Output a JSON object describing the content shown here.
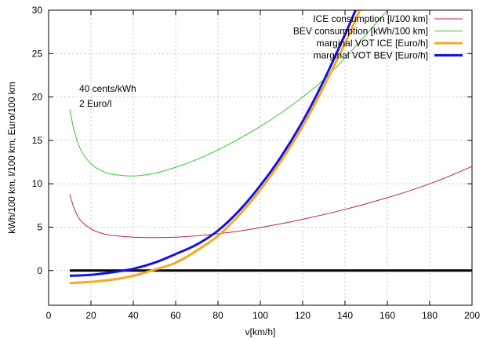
{
  "chart_data": {
    "type": "line",
    "xlabel": "v[km/h]",
    "ylabel": "kWh/100 km, l/100 km, Euro/100 km",
    "xlim": [
      0,
      200
    ],
    "ylim": [
      -4,
      30
    ],
    "xticks": [
      0,
      20,
      40,
      60,
      80,
      100,
      120,
      140,
      160,
      180,
      200
    ],
    "yticks": [
      0,
      5,
      10,
      15,
      20,
      25,
      30
    ],
    "grid": true,
    "legend_position": "top-right",
    "annotations": [
      "40 cents/kWh",
      "2 Euro/l"
    ],
    "zero_line": {
      "y": 0,
      "color": "#000000"
    },
    "series": [
      {
        "name": "ICE consumption [l/100 km]",
        "color": "#c0223b",
        "x": [
          10,
          12,
          15,
          20,
          25,
          30,
          40,
          50,
          60,
          70,
          80,
          90,
          100,
          110,
          120,
          130,
          140,
          150,
          160,
          170,
          180,
          190,
          200
        ],
        "y": [
          8.8,
          7.2,
          5.8,
          4.8,
          4.3,
          4.05,
          3.85,
          3.8,
          3.85,
          4.0,
          4.25,
          4.55,
          4.95,
          5.4,
          5.9,
          6.45,
          7.05,
          7.7,
          8.4,
          9.15,
          10.0,
          10.95,
          12.0
        ]
      },
      {
        "name": "BEV consumption [kWh/100 km]",
        "color": "#2bcc2b",
        "x": [
          10,
          12,
          15,
          20,
          25,
          30,
          40,
          50,
          60,
          70,
          80,
          90,
          100,
          110,
          120,
          130,
          140,
          150,
          160
        ],
        "y": [
          18.6,
          16.2,
          14.0,
          12.3,
          11.5,
          11.1,
          10.9,
          11.2,
          11.9,
          12.8,
          13.9,
          15.2,
          16.6,
          18.2,
          20.0,
          22.0,
          24.5,
          27.2,
          30.0
        ]
      },
      {
        "name": "marginal VOT ICE [Euro/h]",
        "color": "#f7a823",
        "x": [
          10,
          20,
          30,
          40,
          50,
          60,
          70,
          80,
          90,
          100,
          110,
          120,
          130,
          140,
          147
        ],
        "y": [
          -1.45,
          -1.3,
          -1.05,
          -0.6,
          0.1,
          0.9,
          2.3,
          4.0,
          6.4,
          9.3,
          12.7,
          16.6,
          21.2,
          26.2,
          30.0
        ]
      },
      {
        "name": "marginal VOT BEV [Euro/h]",
        "color": "#1414e0",
        "x": [
          10,
          20,
          30,
          40,
          50,
          60,
          70,
          80,
          90,
          100,
          110,
          120,
          130,
          140,
          145
        ],
        "y": [
          -0.6,
          -0.5,
          -0.2,
          0.2,
          0.9,
          1.9,
          3.0,
          4.6,
          6.9,
          9.8,
          13.2,
          17.2,
          21.9,
          27.2,
          30.0
        ]
      }
    ]
  }
}
